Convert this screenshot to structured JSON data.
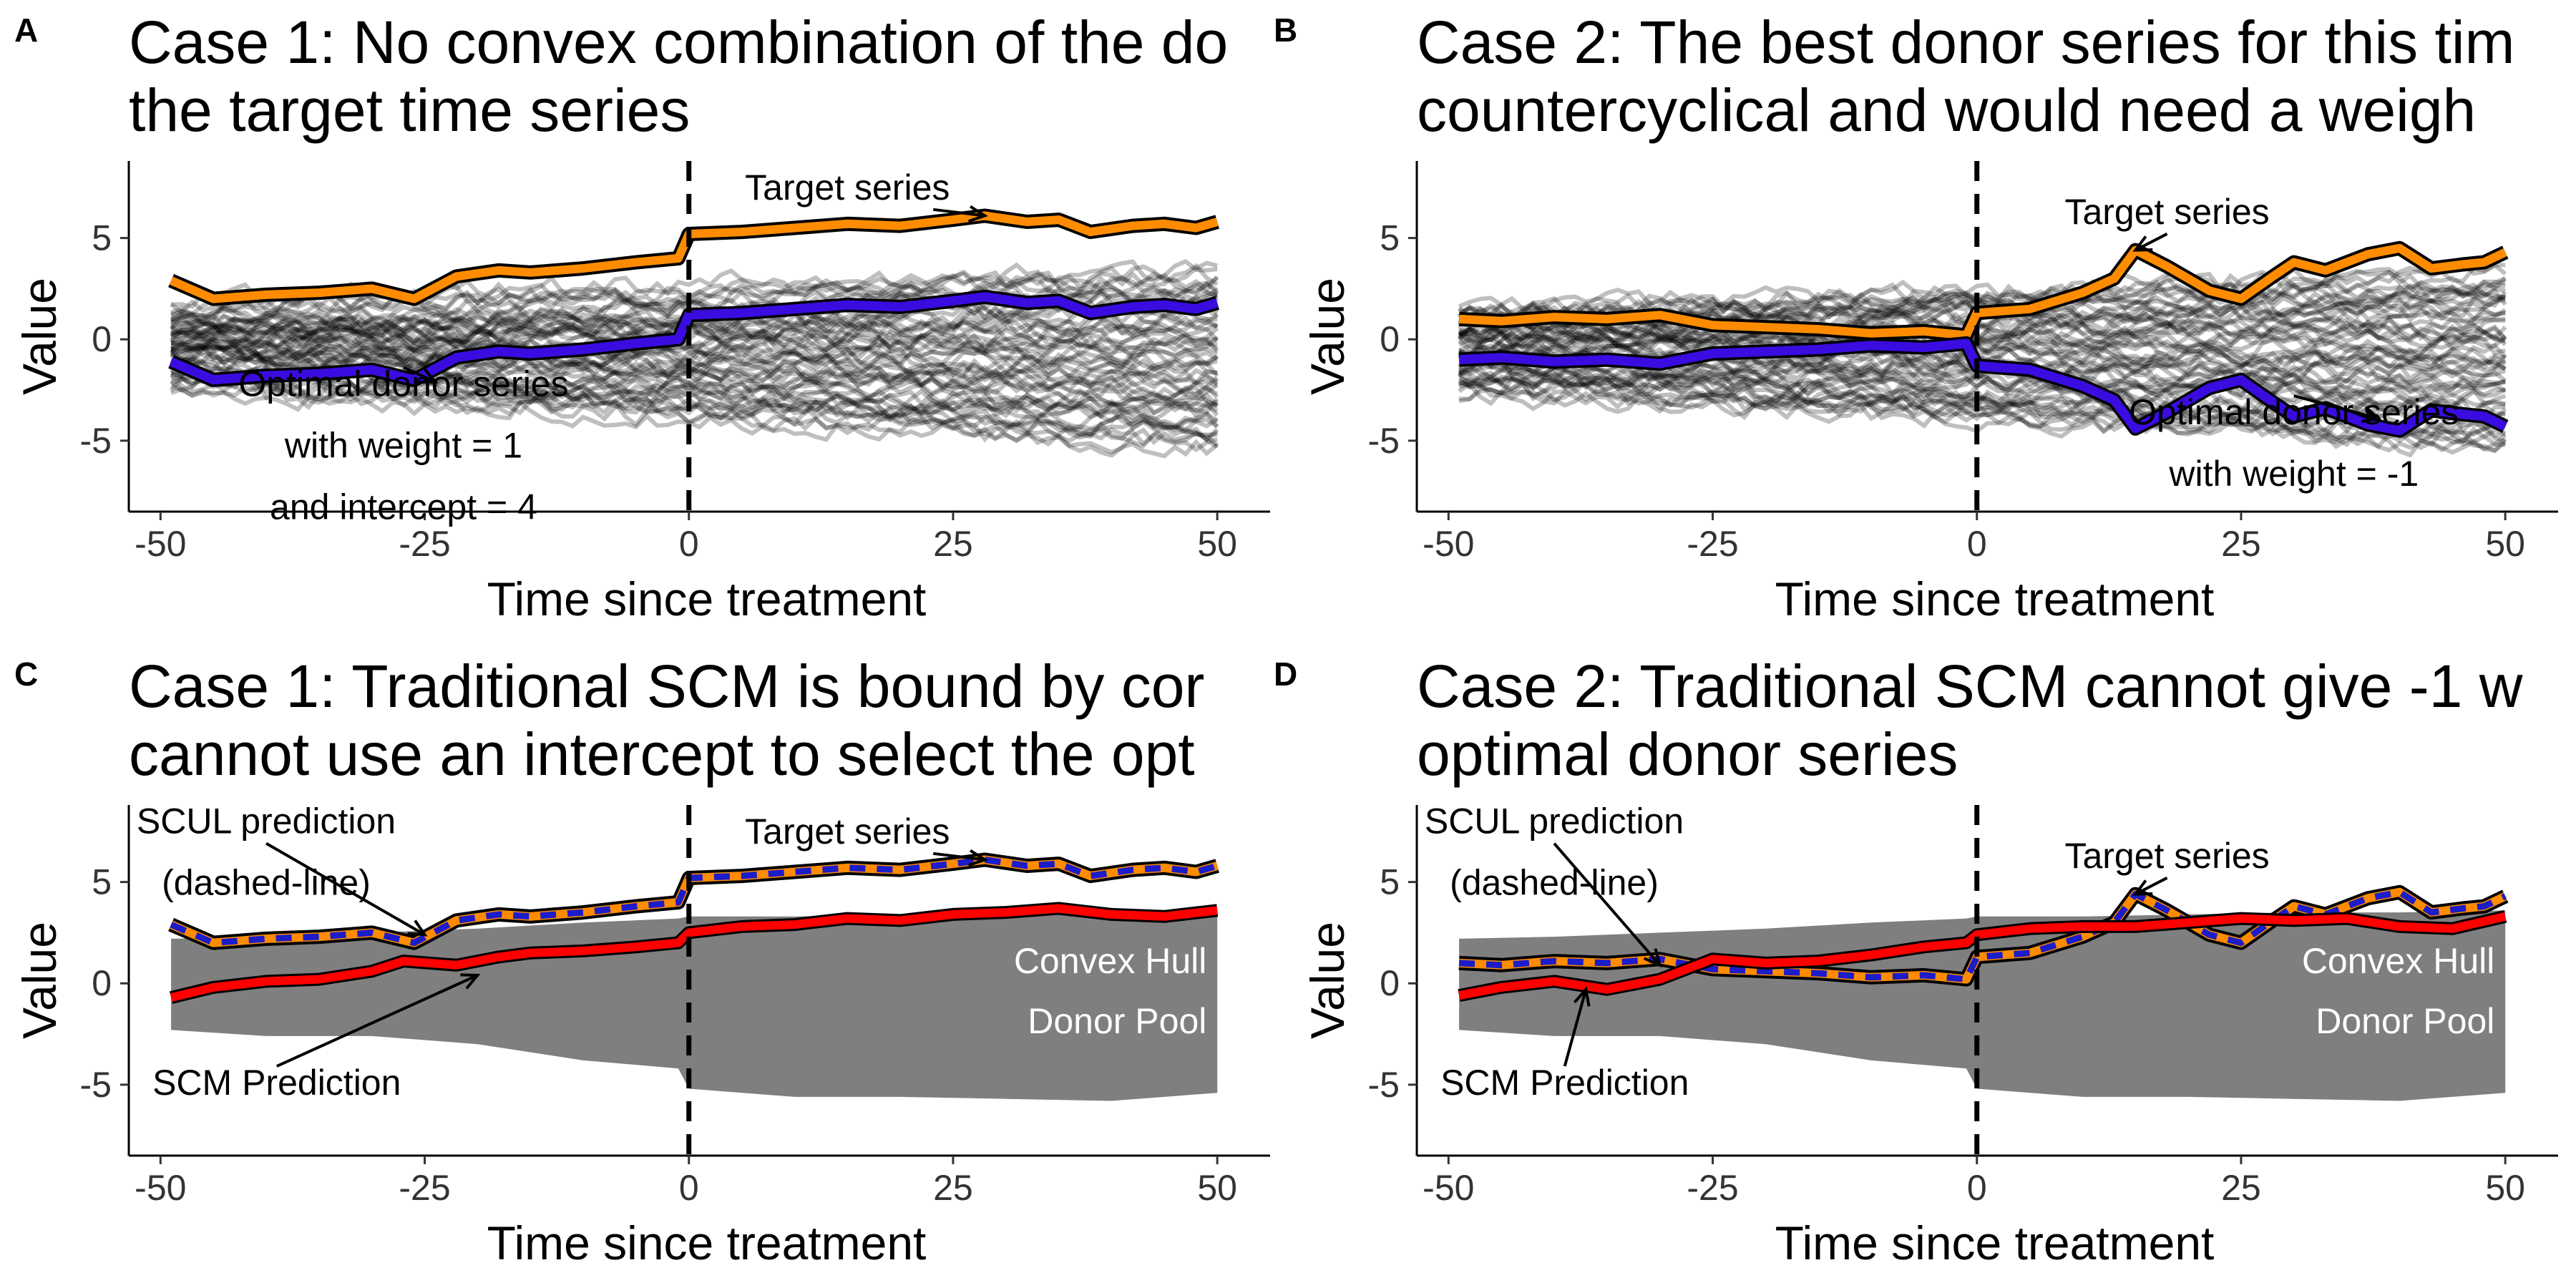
{
  "panels": [
    {
      "id": "A",
      "title_lines": [
        "Case 1: No convex combination of the do",
        " the target time series"
      ],
      "annotations": [
        {
          "id": "target",
          "lines": [
            "Target series"
          ],
          "x": 15,
          "y": 6.9,
          "ax": 28,
          "ay": 6.1
        },
        {
          "id": "optimal",
          "lines": [
            "Optimal donor series",
            "with weight = 1",
            "and intercept = 4"
          ],
          "x": -27,
          "y": -2.8,
          "ax": -24,
          "ay": -2.1
        }
      ]
    },
    {
      "id": "B",
      "title_lines": [
        "Case 2: The best donor series for this tim",
        " countercyclical and would need a weigh"
      ],
      "annotations": [
        {
          "id": "target",
          "lines": [
            "Target series"
          ],
          "x": 18,
          "y": 5.7,
          "ax": 15,
          "ay": 4.4
        },
        {
          "id": "optimal",
          "lines": [
            "Optimal donor series",
            "with weight = -1"
          ],
          "x": 30,
          "y": -4.2,
          "ax": 38,
          "ay": -3.9
        }
      ]
    },
    {
      "id": "C",
      "title_lines": [
        "Case 1: Traditional SCM is bound by cor",
        " cannot use an intercept to select the opt"
      ],
      "annotations": [
        {
          "id": "target",
          "lines": [
            "Target series"
          ],
          "x": 15,
          "y": 6.9,
          "ax": 28,
          "ay": 6.1
        },
        {
          "id": "scul",
          "lines": [
            "SCUL prediction",
            "(dashed-line)"
          ],
          "x": -40,
          "y": 7.4,
          "ax": -25,
          "ay": 2.4
        },
        {
          "id": "scm",
          "lines": [
            "SCM Prediction"
          ],
          "x": -39,
          "y": -5.5,
          "ax": -20,
          "ay": 0.4
        },
        {
          "id": "hull",
          "lines": [
            "Convex Hull",
            "Donor Pool"
          ],
          "x": 49,
          "y": 0.5,
          "ax": null,
          "ay": null
        }
      ]
    },
    {
      "id": "D",
      "title_lines": [
        "Case 2: Traditional SCM cannot give -1 w",
        " optimal donor series"
      ],
      "annotations": [
        {
          "id": "target",
          "lines": [
            "Target series"
          ],
          "x": 18,
          "y": 5.7,
          "ax": 15,
          "ay": 4.4
        },
        {
          "id": "scul",
          "lines": [
            "SCUL prediction",
            "(dashed-line)"
          ],
          "x": -40,
          "y": 7.4,
          "ax": -30,
          "ay": 0.9
        },
        {
          "id": "scm",
          "lines": [
            "SCM Prediction"
          ],
          "x": -39,
          "y": -5.5,
          "ax": -37,
          "ay": -0.3
        },
        {
          "id": "hull",
          "lines": [
            "Convex Hull",
            "Donor Pool"
          ],
          "x": 49,
          "y": 0.5,
          "ax": null,
          "ay": null
        }
      ]
    }
  ],
  "colors": {
    "target": "#FF8C00",
    "optimal_donor": "#3A0CE0",
    "scm": "#FF0000",
    "scul_dash": "#1C1CC8",
    "hull": "#7F7F7F",
    "donor_lines": "rgba(0,0,0,0.25)"
  },
  "chart_data": [
    {
      "panel": "A",
      "type": "line",
      "xlabel": "Time since treatment",
      "ylabel": "Value",
      "x_ticks": [
        -50,
        -25,
        0,
        25,
        50
      ],
      "y_ticks": [
        -5,
        0,
        5
      ],
      "xlim": [
        -53,
        55
      ],
      "ylim": [
        -8.5,
        8.8
      ],
      "treatment_line_x": 0,
      "donor_pool": {
        "count": 60,
        "range": [
          -5.5,
          3.5
        ]
      },
      "series": [
        {
          "name": "Target series",
          "role": "target",
          "x": [
            -49,
            -45,
            -40,
            -35,
            -30,
            -26,
            -22,
            -18,
            -15,
            -10,
            -5,
            -1,
            0,
            5,
            10,
            15,
            20,
            25,
            28,
            32,
            35,
            38,
            42,
            45,
            48,
            50
          ],
          "y": [
            2.9,
            2.0,
            2.2,
            2.3,
            2.5,
            2.0,
            3.1,
            3.4,
            3.3,
            3.5,
            3.8,
            4.0,
            5.2,
            5.3,
            5.5,
            5.7,
            5.6,
            5.9,
            6.1,
            5.8,
            5.9,
            5.3,
            5.6,
            5.7,
            5.5,
            5.8
          ]
        },
        {
          "name": "Optimal donor series",
          "role": "optimal",
          "x": [
            -49,
            -45,
            -40,
            -35,
            -30,
            -26,
            -22,
            -18,
            -15,
            -10,
            -5,
            -1,
            0,
            5,
            10,
            15,
            20,
            25,
            28,
            32,
            35,
            38,
            42,
            45,
            48,
            50
          ],
          "y": [
            -1.1,
            -2.0,
            -1.8,
            -1.7,
            -1.5,
            -2.0,
            -0.9,
            -0.6,
            -0.7,
            -0.5,
            -0.2,
            0.0,
            1.2,
            1.3,
            1.5,
            1.7,
            1.6,
            1.9,
            2.1,
            1.8,
            1.9,
            1.3,
            1.6,
            1.7,
            1.5,
            1.8
          ]
        }
      ]
    },
    {
      "panel": "B",
      "type": "line",
      "xlabel": "Time since treatment",
      "ylabel": "Value",
      "x_ticks": [
        -50,
        -25,
        0,
        25,
        50
      ],
      "y_ticks": [
        -5,
        0,
        5
      ],
      "xlim": [
        -53,
        55
      ],
      "ylim": [
        -8.5,
        8.8
      ],
      "treatment_line_x": 0,
      "donor_pool": {
        "count": 60,
        "range": [
          -5.5,
          3.5
        ]
      },
      "series": [
        {
          "name": "Target series",
          "role": "target",
          "x": [
            -49,
            -45,
            -40,
            -35,
            -30,
            -25,
            -20,
            -15,
            -10,
            -5,
            -1,
            0,
            5,
            10,
            13,
            15,
            18,
            22,
            25,
            28,
            30,
            33,
            37,
            40,
            43,
            46,
            48,
            50
          ],
          "y": [
            1.0,
            0.9,
            1.1,
            1.0,
            1.2,
            0.7,
            0.6,
            0.5,
            0.3,
            0.4,
            0.2,
            1.3,
            1.5,
            2.3,
            3.0,
            4.4,
            3.6,
            2.4,
            2.0,
            3.1,
            3.8,
            3.4,
            4.2,
            4.5,
            3.5,
            3.7,
            3.8,
            4.3
          ]
        },
        {
          "name": "Optimal donor series",
          "role": "optimal",
          "x": [
            -49,
            -45,
            -40,
            -35,
            -30,
            -25,
            -20,
            -15,
            -10,
            -5,
            -1,
            0,
            5,
            10,
            13,
            15,
            18,
            22,
            25,
            28,
            30,
            33,
            37,
            40,
            43,
            46,
            48,
            50
          ],
          "y": [
            -1.0,
            -0.9,
            -1.1,
            -1.0,
            -1.2,
            -0.7,
            -0.6,
            -0.5,
            -0.3,
            -0.4,
            -0.2,
            -1.3,
            -1.5,
            -2.3,
            -3.0,
            -4.4,
            -3.6,
            -2.4,
            -2.0,
            -3.1,
            -3.8,
            -3.4,
            -4.2,
            -4.5,
            -3.5,
            -3.7,
            -3.8,
            -4.3
          ]
        }
      ]
    },
    {
      "panel": "C",
      "type": "area",
      "xlabel": "Time since treatment",
      "ylabel": "Value",
      "x_ticks": [
        -50,
        -25,
        0,
        25,
        50
      ],
      "y_ticks": [
        -5,
        0,
        5
      ],
      "xlim": [
        -53,
        55
      ],
      "ylim": [
        -8.5,
        8.8
      ],
      "treatment_line_x": 0,
      "hull": {
        "x": [
          -49,
          -40,
          -30,
          -20,
          -10,
          -1,
          0,
          10,
          20,
          30,
          40,
          50
        ],
        "upper": [
          2.2,
          2.3,
          2.5,
          2.7,
          3.0,
          3.2,
          3.3,
          3.3,
          3.4,
          3.5,
          3.5,
          3.6
        ],
        "lower": [
          -2.3,
          -2.6,
          -2.6,
          -3.0,
          -3.8,
          -4.2,
          -5.2,
          -5.6,
          -5.6,
          -5.7,
          -5.8,
          -5.4
        ]
      },
      "series": [
        {
          "name": "Target series",
          "role": "target",
          "x": [
            -49,
            -45,
            -40,
            -35,
            -30,
            -26,
            -22,
            -18,
            -15,
            -10,
            -5,
            -1,
            0,
            5,
            10,
            15,
            20,
            25,
            28,
            32,
            35,
            38,
            42,
            45,
            48,
            50
          ],
          "y": [
            2.9,
            2.0,
            2.2,
            2.3,
            2.5,
            2.0,
            3.1,
            3.4,
            3.3,
            3.5,
            3.8,
            4.0,
            5.2,
            5.3,
            5.5,
            5.7,
            5.6,
            5.9,
            6.1,
            5.8,
            5.9,
            5.3,
            5.6,
            5.7,
            5.5,
            5.8
          ]
        },
        {
          "name": "SCUL prediction",
          "role": "scul",
          "x": [
            -49,
            -45,
            -40,
            -35,
            -30,
            -26,
            -22,
            -18,
            -15,
            -10,
            -5,
            -1,
            0,
            5,
            10,
            15,
            20,
            25,
            28,
            32,
            35,
            38,
            42,
            45,
            48,
            50
          ],
          "y": [
            2.9,
            2.0,
            2.2,
            2.3,
            2.5,
            2.0,
            3.1,
            3.4,
            3.3,
            3.5,
            3.8,
            4.0,
            5.2,
            5.3,
            5.5,
            5.7,
            5.6,
            5.9,
            6.1,
            5.8,
            5.9,
            5.3,
            5.6,
            5.7,
            5.5,
            5.8
          ]
        },
        {
          "name": "SCM Prediction",
          "role": "scm",
          "x": [
            -49,
            -45,
            -40,
            -35,
            -30,
            -27,
            -22,
            -18,
            -15,
            -10,
            -5,
            -1,
            0,
            5,
            10,
            15,
            20,
            25,
            30,
            35,
            40,
            45,
            50
          ],
          "y": [
            -0.7,
            -0.2,
            0.1,
            0.2,
            0.6,
            1.1,
            0.9,
            1.3,
            1.5,
            1.6,
            1.8,
            2.0,
            2.5,
            2.8,
            2.9,
            3.2,
            3.1,
            3.4,
            3.5,
            3.7,
            3.4,
            3.3,
            3.6
          ]
        }
      ]
    },
    {
      "panel": "D",
      "type": "area",
      "xlabel": "Time since treatment",
      "ylabel": "Value",
      "x_ticks": [
        -50,
        -25,
        0,
        25,
        50
      ],
      "y_ticks": [
        -5,
        0,
        5
      ],
      "xlim": [
        -53,
        55
      ],
      "ylim": [
        -8.5,
        8.8
      ],
      "treatment_line_x": 0,
      "hull": {
        "x": [
          -49,
          -40,
          -30,
          -20,
          -10,
          -1,
          0,
          10,
          20,
          30,
          40,
          50
        ],
        "upper": [
          2.2,
          2.3,
          2.5,
          2.7,
          3.0,
          3.2,
          3.3,
          3.3,
          3.4,
          3.5,
          3.5,
          3.6
        ],
        "lower": [
          -2.3,
          -2.6,
          -2.6,
          -3.0,
          -3.8,
          -4.2,
          -5.2,
          -5.6,
          -5.6,
          -5.7,
          -5.8,
          -5.4
        ]
      },
      "series": [
        {
          "name": "Target series",
          "role": "target",
          "x": [
            -49,
            -45,
            -40,
            -35,
            -30,
            -25,
            -20,
            -15,
            -10,
            -5,
            -1,
            0,
            5,
            10,
            13,
            15,
            18,
            22,
            25,
            28,
            30,
            33,
            37,
            40,
            43,
            46,
            48,
            50
          ],
          "y": [
            1.0,
            0.9,
            1.1,
            1.0,
            1.2,
            0.7,
            0.6,
            0.5,
            0.3,
            0.4,
            0.2,
            1.3,
            1.5,
            2.3,
            3.0,
            4.4,
            3.6,
            2.4,
            2.0,
            3.1,
            3.8,
            3.4,
            4.2,
            4.5,
            3.5,
            3.7,
            3.8,
            4.3
          ]
        },
        {
          "name": "SCUL prediction",
          "role": "scul",
          "x": [
            -49,
            -45,
            -40,
            -35,
            -30,
            -25,
            -20,
            -15,
            -10,
            -5,
            -1,
            0,
            5,
            10,
            13,
            15,
            18,
            22,
            25,
            28,
            30,
            33,
            37,
            40,
            43,
            46,
            48,
            50
          ],
          "y": [
            1.0,
            0.9,
            1.1,
            1.0,
            1.2,
            0.7,
            0.6,
            0.5,
            0.3,
            0.4,
            0.2,
            1.3,
            1.5,
            2.3,
            3.0,
            4.4,
            3.6,
            2.4,
            2.0,
            3.1,
            3.8,
            3.4,
            4.2,
            4.5,
            3.5,
            3.7,
            3.8,
            4.3
          ]
        },
        {
          "name": "SCM Prediction",
          "role": "scm",
          "x": [
            -49,
            -45,
            -40,
            -35,
            -30,
            -25,
            -20,
            -15,
            -10,
            -5,
            -1,
            0,
            5,
            10,
            15,
            20,
            25,
            30,
            35,
            40,
            45,
            50
          ],
          "y": [
            -0.6,
            -0.2,
            0.1,
            -0.3,
            0.2,
            1.2,
            1.0,
            1.1,
            1.4,
            1.8,
            2.0,
            2.4,
            2.7,
            2.8,
            2.8,
            3.0,
            3.2,
            3.1,
            3.2,
            2.8,
            2.7,
            3.3
          ]
        }
      ]
    }
  ]
}
